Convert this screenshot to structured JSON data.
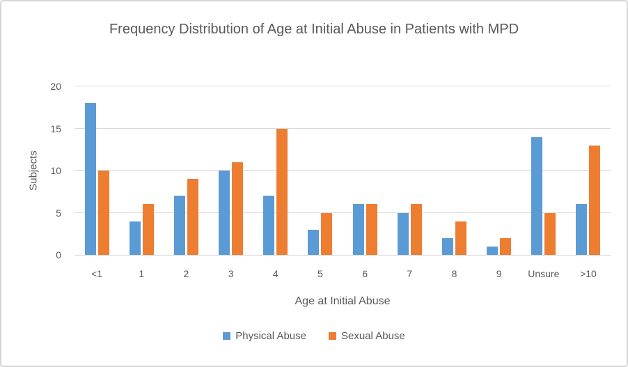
{
  "chart_data": {
    "type": "bar",
    "title": "Frequency Distribution of Age at Initial Abuse in Patients with MPD",
    "categories": [
      "<1",
      "1",
      "2",
      "3",
      "4",
      "5",
      "6",
      "7",
      "8",
      "9",
      "Unsure",
      ">10"
    ],
    "series": [
      {
        "name": "Physical Abuse",
        "color": "#5B9BD5",
        "values": [
          18,
          4,
          7,
          10,
          7,
          3,
          6,
          5,
          2,
          1,
          14,
          6
        ]
      },
      {
        "name": "Sexual Abuse",
        "color": "#ED7D31",
        "values": [
          10,
          6,
          9,
          11,
          15,
          5,
          6,
          6,
          4,
          2,
          5,
          13
        ]
      }
    ],
    "xlabel": "Age at Initial Abuse",
    "ylabel": "Subjects",
    "ylim": [
      0,
      20
    ],
    "yticks": [
      0,
      5,
      10,
      15,
      20
    ],
    "grid": true,
    "legend_position": "bottom"
  },
  "colors": {
    "gridline": "#D9D9D9",
    "axis_line": "#D9D9D9",
    "text": "#595959",
    "frame_border": "#D6D6D6",
    "background": "#FFFFFF"
  }
}
